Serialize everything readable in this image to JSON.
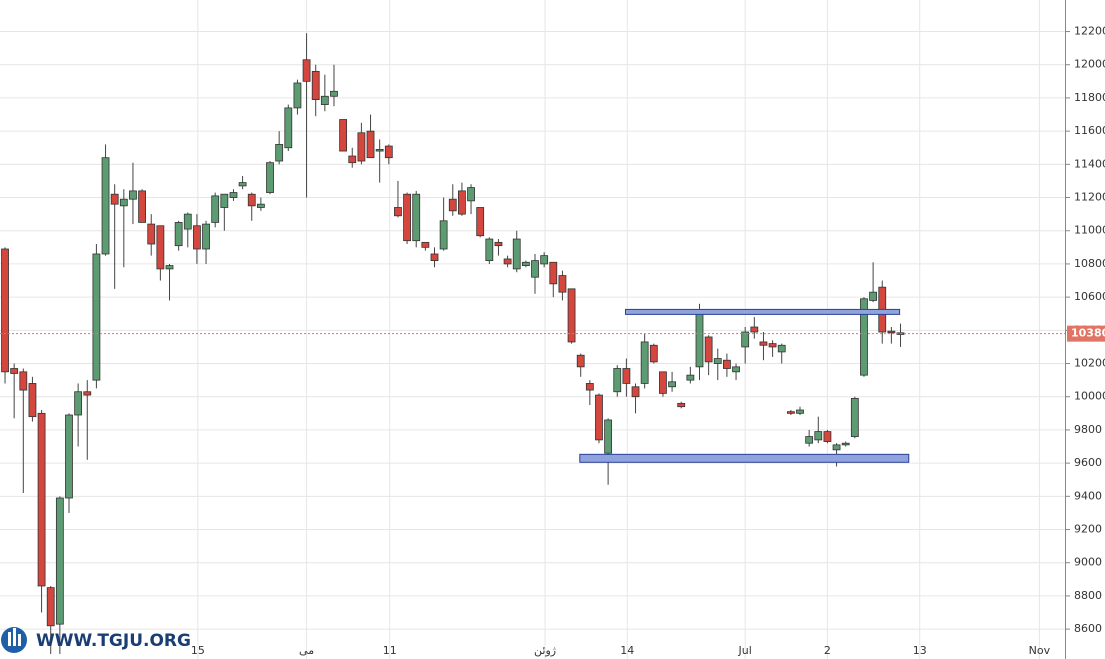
{
  "chart_data": {
    "type": "candlestick",
    "x": [
      0,
      1,
      2,
      3,
      4,
      5,
      6,
      7,
      8,
      9,
      10,
      11,
      12,
      13,
      14,
      15,
      16,
      17,
      18,
      19,
      20,
      21,
      22,
      23,
      24,
      25,
      26,
      27,
      28,
      29,
      30,
      31,
      32,
      33,
      34,
      35,
      36,
      37,
      38,
      39,
      40,
      41,
      42,
      43,
      44,
      45,
      46,
      47,
      48,
      49,
      50,
      51,
      52,
      53,
      54,
      55,
      56,
      57,
      58,
      59,
      60,
      61,
      62,
      63,
      64,
      65,
      66,
      67,
      68,
      69,
      70,
      71,
      72,
      73,
      74,
      75,
      76,
      77,
      78,
      79,
      80,
      81,
      82,
      83,
      84,
      85,
      86,
      87,
      88,
      89,
      90,
      91,
      92,
      93,
      94,
      95,
      96,
      97,
      98
    ],
    "open": [
      10890,
      10170,
      10150,
      10080,
      9900,
      8850,
      8630,
      9390,
      9890,
      10030,
      10100,
      10860,
      11220,
      11150,
      11190,
      11240,
      11040,
      11030,
      10770,
      10910,
      11010,
      11030,
      10890,
      11050,
      11140,
      11200,
      11270,
      11220,
      11140,
      11230,
      11420,
      11500,
      11740,
      12030,
      11960,
      11760,
      11810,
      11670,
      11450,
      11590,
      11600,
      11480,
      11510,
      11140,
      11220,
      10940,
      10930,
      10860,
      10890,
      11190,
      11240,
      11180,
      11140,
      10820,
      10930,
      10830,
      10770,
      10790,
      10720,
      10800,
      10810,
      10730,
      10650,
      10250,
      10080,
      10010,
      9660,
      10030,
      10170,
      10060,
      10080,
      10310,
      10150,
      10060,
      9960,
      10100,
      10180,
      10360,
      10200,
      10220,
      10150,
      10300,
      10420,
      10330,
      10320,
      10270,
      9910,
      9900,
      9720,
      9740,
      9790,
      9680,
      9710,
      9760,
      10130,
      10580,
      10660,
      10395,
      10385
    ],
    "high": [
      10900,
      10200,
      10170,
      10120,
      9920,
      8860,
      9400,
      9900,
      10080,
      10100,
      10920,
      11520,
      11280,
      11250,
      11410,
      11250,
      11100,
      11030,
      10800,
      11060,
      11110,
      11100,
      11060,
      11230,
      11220,
      11250,
      11330,
      11230,
      11200,
      11420,
      11600,
      11760,
      11910,
      12190,
      12000,
      11940,
      12000,
      11670,
      11500,
      11650,
      11700,
      11550,
      11520,
      11300,
      11230,
      11240,
      10930,
      10900,
      11200,
      11280,
      11290,
      11280,
      11140,
      10960,
      10950,
      10850,
      11000,
      10820,
      10860,
      10870,
      10810,
      10760,
      10650,
      10260,
      10100,
      10020,
      9870,
      10190,
      10230,
      10080,
      10380,
      10320,
      10150,
      10150,
      9970,
      10180,
      10560,
      10370,
      10290,
      10260,
      10200,
      10420,
      10480,
      10390,
      10340,
      10320,
      9920,
      9940,
      9800,
      9880,
      9800,
      9720,
      9730,
      10000,
      10600,
      10810,
      10700,
      10420,
      10440
    ],
    "low": [
      10080,
      9870,
      9420,
      9850,
      8700,
      8450,
      8450,
      9300,
      9700,
      9620,
      10050,
      10850,
      10650,
      10780,
      11040,
      11050,
      10850,
      10700,
      10580,
      10880,
      10900,
      10800,
      10800,
      11020,
      11000,
      11180,
      11250,
      11060,
      11120,
      11220,
      11400,
      11480,
      11700,
      11200,
      11690,
      11720,
      11750,
      11480,
      11380,
      11400,
      11440,
      11290,
      11400,
      11080,
      10920,
      10900,
      10880,
      10780,
      10880,
      11090,
      11090,
      11100,
      10960,
      10800,
      10850,
      10780,
      10750,
      10780,
      10620,
      10780,
      10600,
      10580,
      10320,
      10120,
      9950,
      9720,
      9470,
      10000,
      10000,
      9900,
      10050,
      10200,
      10000,
      10030,
      9930,
      10080,
      10100,
      10130,
      10100,
      10120,
      10100,
      10200,
      10350,
      10220,
      10240,
      10200,
      9890,
      9890,
      9700,
      9720,
      9720,
      9580,
      9700,
      9750,
      10120,
      10570,
      10320,
      10320,
      10300
    ],
    "close": [
      10150,
      10140,
      10040,
      9880,
      8860,
      8620,
      9390,
      9890,
      10030,
      10010,
      10860,
      11440,
      11160,
      11190,
      11240,
      11050,
      10920,
      10770,
      10790,
      11050,
      11100,
      10890,
      11040,
      11210,
      11220,
      11230,
      11290,
      11150,
      11160,
      11410,
      11520,
      11740,
      11890,
      11900,
      11790,
      11810,
      11840,
      11480,
      11410,
      11420,
      11440,
      11490,
      11440,
      11090,
      10940,
      11220,
      10900,
      10820,
      11060,
      11120,
      11100,
      11260,
      10970,
      10950,
      10910,
      10800,
      10950,
      10810,
      10820,
      10850,
      10680,
      10630,
      10330,
      10180,
      10040,
      9740,
      9860,
      10170,
      10080,
      10000,
      10330,
      10210,
      10020,
      10090,
      9940,
      10130,
      10510,
      10210,
      10230,
      10170,
      10180,
      10390,
      10390,
      10310,
      10300,
      10310,
      9900,
      9920,
      9760,
      9790,
      9730,
      9710,
      9720,
      9990,
      10590,
      10630,
      10390,
      10385,
      10375
    ],
    "up_color": "#5d9c72",
    "down_color": "#d4473f",
    "xlim": [
      -0.55,
      116
    ],
    "ylim": [
      8420,
      12390
    ],
    "xticks": [
      {
        "value": 21.1,
        "label": "15"
      },
      {
        "value": 33.0,
        "label": "می"
      },
      {
        "value": 42.1,
        "label": "11"
      },
      {
        "value": 59.1,
        "label": "ژوئن"
      },
      {
        "value": 68.1,
        "label": "14"
      },
      {
        "value": 81.0,
        "label": "Jul"
      },
      {
        "value": 90.0,
        "label": "2"
      },
      {
        "value": 100.1,
        "label": "13"
      },
      {
        "value": 113.2,
        "label": "Nov"
      }
    ],
    "yticks": [
      8600,
      8800,
      9000,
      9200,
      9400,
      9600,
      9800,
      10000,
      10200,
      10400,
      10600,
      10800,
      11000,
      11200,
      11400,
      11600,
      11800,
      12000,
      12200
    ],
    "grid": true,
    "last_price": 10380,
    "last_price_color": "#e07565",
    "zones": [
      {
        "x": [
          67.9,
          97.9
        ],
        "y": [
          10496,
          10526
        ]
      },
      {
        "x": [
          62.9,
          98.9
        ],
        "y": [
          9605,
          9653
        ]
      }
    ],
    "zone_color": "#8fa3dc",
    "watermark": "WWW.TGJU.ORG"
  }
}
